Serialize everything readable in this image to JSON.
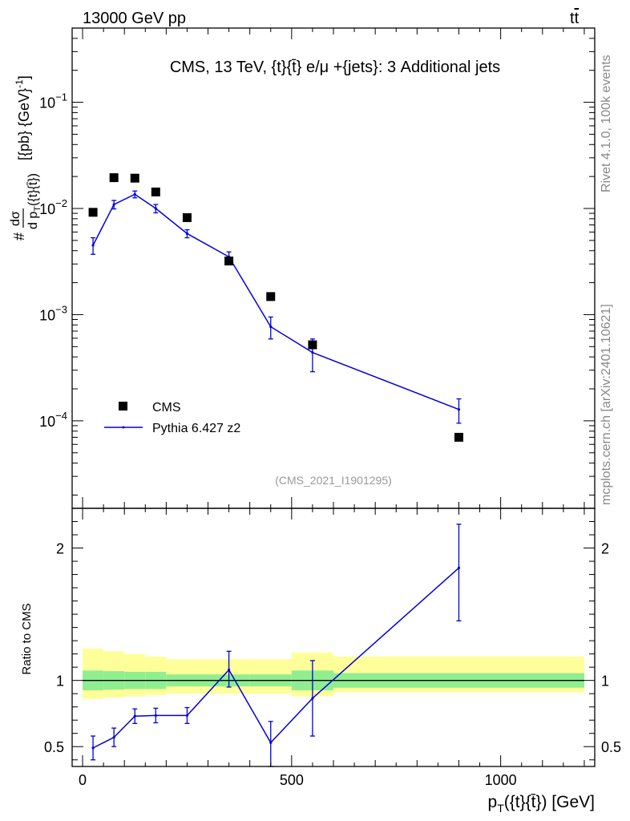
{
  "header": {
    "left": "13000 GeV pp",
    "right_base": "t",
    "right_bar": "t"
  },
  "side_labels": {
    "rivet": "Rivet 4.1.0,  100k events",
    "mcplots": "mcplots.cern.ch [arXiv:2401.10621]"
  },
  "chart_data": {
    "type": "line",
    "title": "CMS, 13 TeV, {t}{t̄} e/μ +{jets}: 3 Additional jets",
    "watermark": "(CMS_2021_I1901295)",
    "xlabel": "p_T({t}{t̄}) [GeV]",
    "ylabel_top": "#  dσ / d p_T({t}{t̄}) [{pb} {GeV}^-1]",
    "ylabel_bottom": "Ratio to CMS",
    "x_range": [
      -25,
      1225
    ],
    "main_y_log_range": [
      1.5e-05,
      0.5
    ],
    "ratio_y_range": [
      0.35,
      2.3
    ],
    "x_ticks": [
      {
        "value": 0,
        "label": "0"
      },
      {
        "value": 500,
        "label": "500"
      },
      {
        "value": 1000,
        "label": "1000"
      }
    ],
    "main_y_ticks": [
      {
        "value": 0.1,
        "base": "10",
        "exp": "−1"
      },
      {
        "value": 0.01,
        "base": "10",
        "exp": "−2"
      },
      {
        "value": 0.001,
        "base": "10",
        "exp": "−3"
      },
      {
        "value": 0.0001,
        "base": "10",
        "exp": "−4"
      }
    ],
    "ratio_y_ticks": [
      {
        "value": 0.5,
        "label": "0.5"
      },
      {
        "value": 1,
        "label": "1"
      },
      {
        "value": 2,
        "label": "2"
      }
    ],
    "legend": [
      {
        "name": "CMS",
        "kind": "marker"
      },
      {
        "name": "Pythia 6.427 z2",
        "kind": "line"
      }
    ],
    "series": [
      {
        "name": "CMS",
        "color": "#000000",
        "x": [
          25,
          75,
          125,
          175,
          250,
          350,
          450,
          550,
          900
        ],
        "y": [
          0.0092,
          0.0195,
          0.0193,
          0.0143,
          0.0082,
          0.0032,
          0.00148,
          0.00052,
          7e-05
        ]
      },
      {
        "name": "Pythia 6.427 z2",
        "color": "#0000dd",
        "x": [
          25,
          75,
          125,
          175,
          250,
          350,
          450,
          550,
          900
        ],
        "y": [
          0.0045,
          0.0109,
          0.0136,
          0.01,
          0.0058,
          0.0035,
          0.00077,
          0.00044,
          0.000128
        ],
        "y_low": [
          0.0037,
          0.0099,
          0.0126,
          0.0091,
          0.0053,
          0.0031,
          0.00059,
          0.00029,
          9.5e-05
        ],
        "y_high": [
          0.0053,
          0.0119,
          0.0146,
          0.0109,
          0.0063,
          0.0039,
          0.00095,
          0.00059,
          0.000161
        ]
      }
    ],
    "ratio": {
      "x": [
        25,
        75,
        125,
        175,
        250,
        350,
        450,
        550,
        900
      ],
      "y": [
        0.49,
        0.57,
        0.73,
        0.735,
        0.735,
        1.08,
        0.53,
        0.865,
        1.85
      ],
      "y_low": [
        0.4,
        0.5,
        0.675,
        0.68,
        0.675,
        0.95,
        0.35,
        0.58,
        1.45
      ],
      "y_high": [
        0.58,
        0.64,
        0.785,
        0.79,
        0.795,
        1.22,
        0.69,
        1.15,
        2.18
      ]
    },
    "bands": {
      "bin_edges": [
        0,
        50,
        100,
        150,
        200,
        300,
        400,
        500,
        600,
        1200
      ],
      "inner_lo": [
        0.925,
        0.93,
        0.935,
        0.935,
        0.955,
        0.955,
        0.955,
        0.925,
        0.945
      ],
      "inner_hi": [
        1.075,
        1.07,
        1.065,
        1.065,
        1.045,
        1.045,
        1.045,
        1.075,
        1.055
      ],
      "outer_lo": [
        0.86,
        0.87,
        0.88,
        0.89,
        0.9,
        0.9,
        0.9,
        0.88,
        0.91
      ],
      "outer_hi": [
        1.24,
        1.22,
        1.2,
        1.18,
        1.16,
        1.16,
        1.16,
        1.21,
        1.18
      ],
      "inner_color": "#90ee90",
      "outer_color": "#ffff99"
    }
  }
}
